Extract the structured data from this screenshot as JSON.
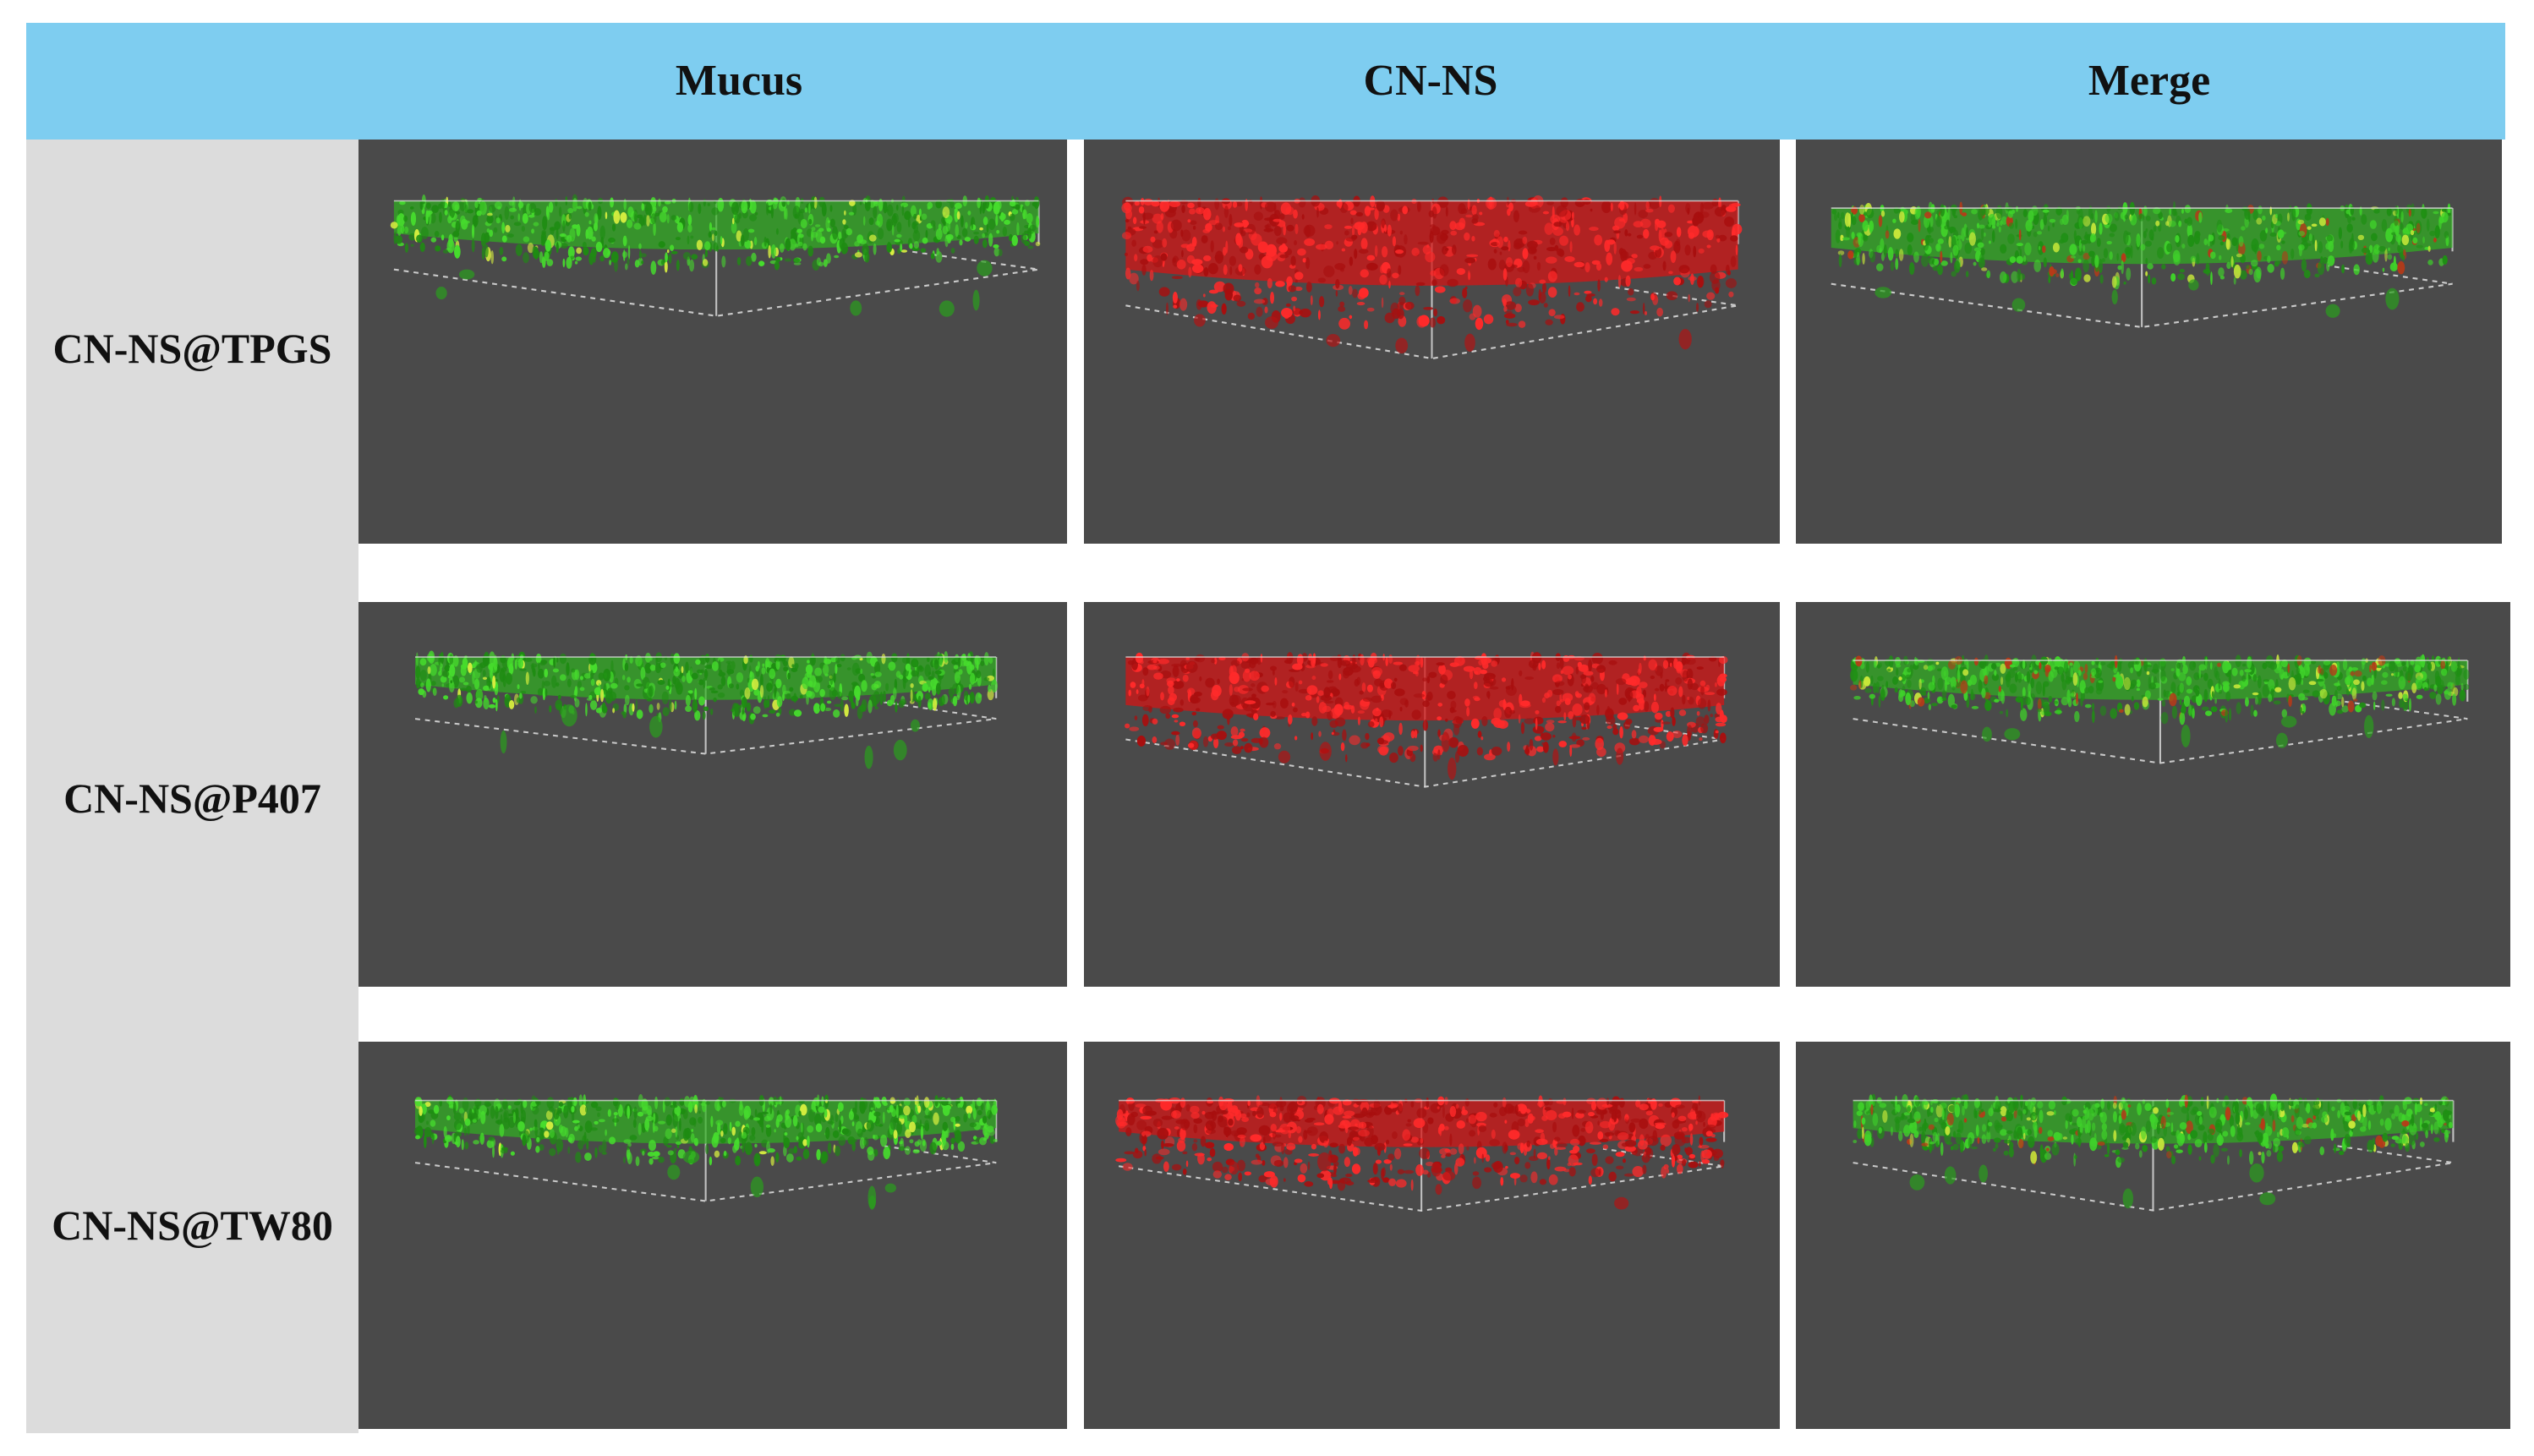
{
  "columns": [
    {
      "label": "Mucus",
      "channel": "green"
    },
    {
      "label": "CN-NS",
      "channel": "red"
    },
    {
      "label": "Merge",
      "channel": "merge"
    }
  ],
  "rows": [
    {
      "label": "CN-NS@TPGS"
    },
    {
      "label": "CN-NS@P407"
    },
    {
      "label": "CN-NS@TW80"
    }
  ],
  "colors": {
    "header_background": "#7ecdf0",
    "row_label_background": "#dcdcdc",
    "panel_background": "#4a4a4a",
    "mucus_signal": "#2fb21f",
    "cnns_signal": "#d41616",
    "outline": "#d8d8d8"
  }
}
